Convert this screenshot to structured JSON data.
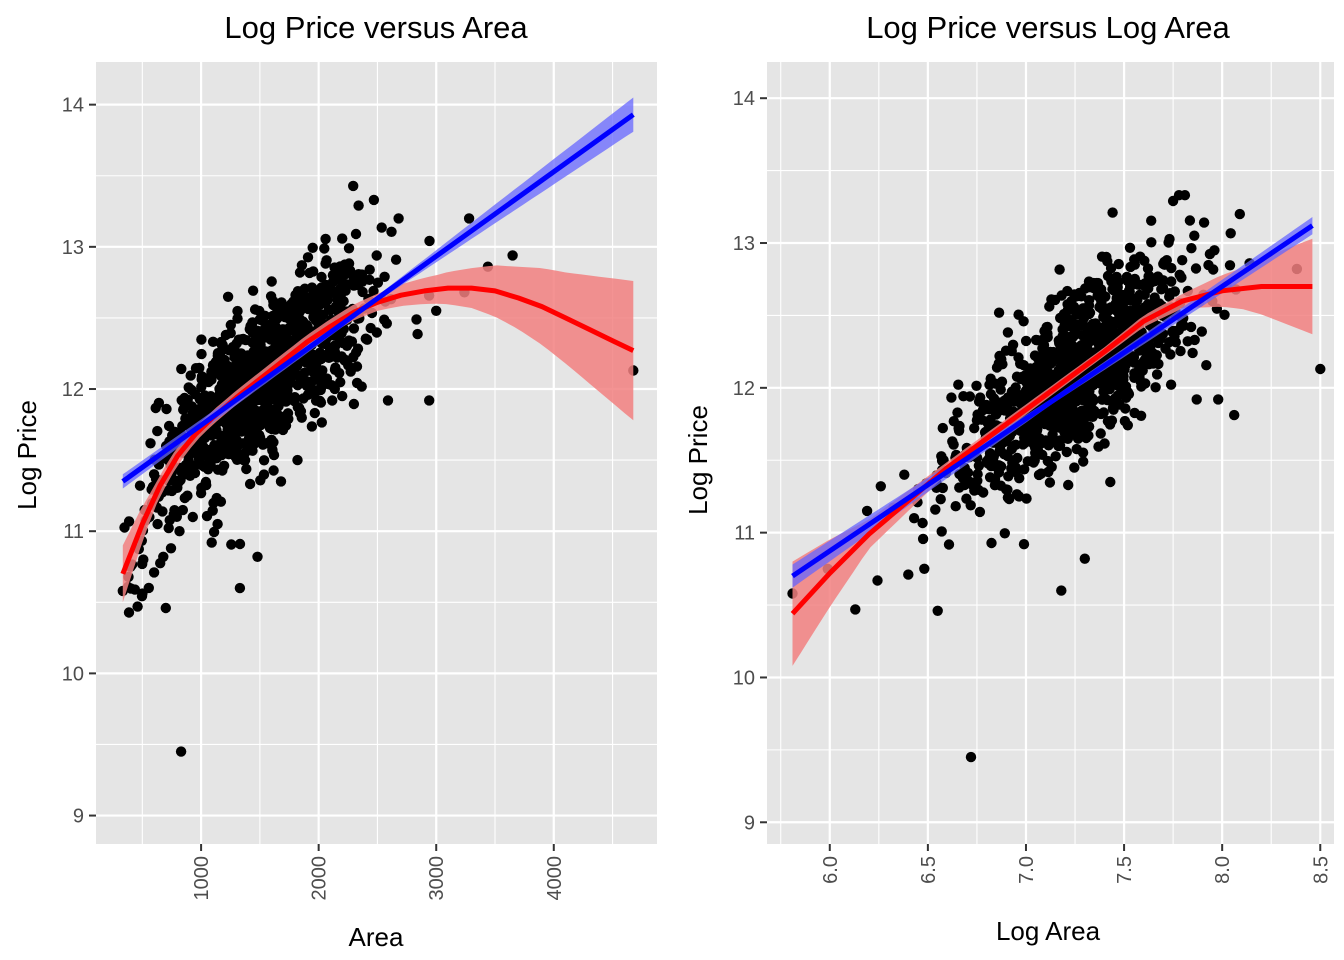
{
  "chart_data": [
    {
      "type": "scatter",
      "title": "Log Price versus Area",
      "xlabel": "Area",
      "ylabel": "Log Price",
      "xlim": [
        106,
        4878
      ],
      "ylim": [
        8.8,
        14.3
      ],
      "x_ticks": [
        1000,
        2000,
        3000,
        4000
      ],
      "x_ticks_text": [
        "1000",
        "2000",
        "3000",
        "4000"
      ],
      "y_ticks": [
        9,
        10,
        11,
        12,
        13,
        14
      ],
      "y_ticks_text": [
        "9",
        "10",
        "11",
        "12",
        "13",
        "14"
      ],
      "grid": true,
      "series": [
        {
          "kind": "points",
          "color": "#000000",
          "points_outliers": [
            [
              334,
              10.58
            ],
            [
              400,
              10.75
            ],
            [
              460,
              10.47
            ],
            [
              600,
              10.71
            ],
            [
              700,
              10.46
            ],
            [
              830,
              9.45
            ],
            [
              1090,
              10.92
            ],
            [
              1140,
              11.05
            ],
            [
              1330,
              10.6
            ],
            [
              1480,
              10.82
            ],
            [
              1680,
              11.35
            ],
            [
              2470,
              13.33
            ],
            [
              2680,
              13.2
            ],
            [
              2340,
              13.29
            ],
            [
              3240,
              12.68
            ],
            [
              3440,
              12.86
            ],
            [
              3650,
              12.94
            ],
            [
              3280,
              13.2
            ],
            [
              2590,
              11.92
            ],
            [
              2940,
              11.92
            ],
            [
              3000,
              12.55
            ],
            [
              4676,
              12.13
            ],
            [
              2200,
              11.95
            ],
            [
              1820,
              11.5
            ],
            [
              520,
              11.15
            ],
            [
              650,
              11.3
            ],
            [
              560,
              11.1
            ],
            [
              720,
              11.5
            ],
            [
              480,
              11.32
            ],
            [
              600,
              11.4
            ]
          ],
          "cloud": {
            "n": 1100,
            "x_center": 1500,
            "x_sd": 480,
            "y_sd": 0.26
          }
        },
        {
          "kind": "line",
          "method": "linear fit",
          "color": "#0000ff",
          "band_color": "#6666ff",
          "points": [
            [
              334,
              11.35
            ],
            [
              4676,
              13.93
            ]
          ],
          "band_halfwidth": [
            0.05,
            0.02,
            0.12
          ]
        },
        {
          "kind": "line",
          "method": "polynomial fit",
          "color": "#ff0000",
          "band_color": "#f28080",
          "points": [
            [
              334,
              10.7
            ],
            [
              500,
              11.05
            ],
            [
              650,
              11.32
            ],
            [
              800,
              11.53
            ],
            [
              950,
              11.68
            ],
            [
              1100,
              11.8
            ],
            [
              1300,
              11.94
            ],
            [
              1500,
              12.07
            ],
            [
              1700,
              12.2
            ],
            [
              1900,
              12.33
            ],
            [
              2100,
              12.44
            ],
            [
              2300,
              12.54
            ],
            [
              2500,
              12.61
            ],
            [
              2700,
              12.66
            ],
            [
              2900,
              12.69
            ],
            [
              3100,
              12.71
            ],
            [
              3300,
              12.71
            ],
            [
              3500,
              12.69
            ],
            [
              3700,
              12.64
            ],
            [
              3900,
              12.58
            ],
            [
              4100,
              12.5
            ],
            [
              4300,
              12.42
            ],
            [
              4500,
              12.34
            ],
            [
              4676,
              12.27
            ]
          ],
          "band_halfwidth_points": [
            [
              334,
              0.2
            ],
            [
              600,
              0.08
            ],
            [
              1000,
              0.05
            ],
            [
              2000,
              0.05
            ],
            [
              2500,
              0.06
            ],
            [
              3000,
              0.1
            ],
            [
              3300,
              0.14
            ],
            [
              3700,
              0.22
            ],
            [
              4100,
              0.32
            ],
            [
              4676,
              0.49
            ]
          ]
        }
      ]
    },
    {
      "type": "scatter",
      "title": "Log Price versus Log Area",
      "xlabel": "Log Area",
      "ylabel": "Log Price",
      "xlim": [
        5.68,
        8.57
      ],
      "ylim": [
        8.85,
        14.25
      ],
      "x_ticks": [
        6.0,
        6.5,
        7.0,
        7.5,
        8.0,
        8.5
      ],
      "x_ticks_text": [
        "6.0",
        "6.5",
        "7.0",
        "7.5",
        "8.0",
        "8.5"
      ],
      "y_ticks": [
        9,
        10,
        11,
        12,
        13,
        14
      ],
      "y_ticks_text": [
        "9",
        "10",
        "11",
        "12",
        "13",
        "14"
      ],
      "grid": true,
      "series": [
        {
          "kind": "points",
          "color": "#000000",
          "points_outliers": [
            [
              5.81,
              10.58
            ],
            [
              5.99,
              10.75
            ],
            [
              6.13,
              10.47
            ],
            [
              6.4,
              10.71
            ],
            [
              6.55,
              10.46
            ],
            [
              6.72,
              9.45
            ],
            [
              6.99,
              10.92
            ],
            [
              7.18,
              10.6
            ],
            [
              7.3,
              10.82
            ],
            [
              7.78,
              13.33
            ],
            [
              7.81,
              13.33
            ],
            [
              7.75,
              13.29
            ],
            [
              8.09,
              13.2
            ],
            [
              8.5,
              12.13
            ],
            [
              7.87,
              11.92
            ],
            [
              7.98,
              11.92
            ],
            [
              8.07,
              12.68
            ],
            [
              8.14,
              12.86
            ],
            [
              7.43,
              11.35
            ],
            [
              6.26,
              11.32
            ],
            [
              6.19,
              11.15
            ],
            [
              6.45,
              11.3
            ],
            [
              6.38,
              11.4
            ],
            [
              6.43,
              11.1
            ],
            [
              6.58,
              11.5
            ]
          ],
          "cloud": {
            "n": 1100,
            "x_center": 7.25,
            "x_sd": 0.3,
            "y_sd": 0.26
          }
        },
        {
          "kind": "line",
          "method": "linear fit",
          "color": "#0000ff",
          "band_color": "#6666ff",
          "points": [
            [
              5.81,
              10.7
            ],
            [
              8.46,
              13.12
            ]
          ],
          "band_halfwidth": [
            0.08,
            0.02,
            0.06
          ]
        },
        {
          "kind": "line",
          "method": "polynomial fit",
          "color": "#ff0000",
          "band_color": "#f28080",
          "points": [
            [
              5.81,
              10.44
            ],
            [
              6.0,
              10.72
            ],
            [
              6.2,
              10.99
            ],
            [
              6.4,
              11.22
            ],
            [
              6.6,
              11.45
            ],
            [
              6.8,
              11.65
            ],
            [
              7.0,
              11.85
            ],
            [
              7.2,
              12.05
            ],
            [
              7.4,
              12.25
            ],
            [
              7.6,
              12.46
            ],
            [
              7.8,
              12.6
            ],
            [
              8.0,
              12.67
            ],
            [
              8.2,
              12.7
            ],
            [
              8.46,
              12.7
            ]
          ],
          "band_halfwidth_points": [
            [
              5.81,
              0.36
            ],
            [
              6.2,
              0.1
            ],
            [
              6.6,
              0.04
            ],
            [
              7.4,
              0.03
            ],
            [
              7.8,
              0.05
            ],
            [
              8.1,
              0.14
            ],
            [
              8.46,
              0.33
            ]
          ]
        }
      ]
    }
  ]
}
